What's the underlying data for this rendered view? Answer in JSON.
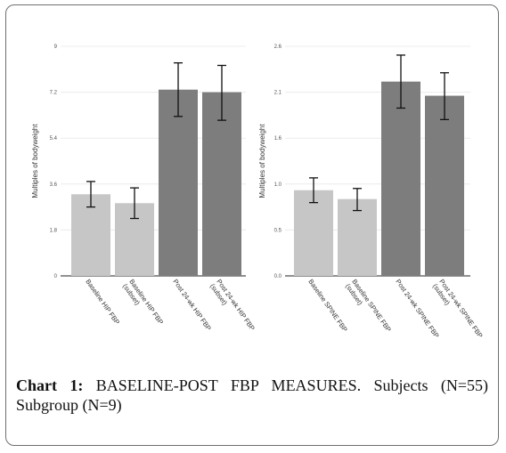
{
  "chart_data": [
    {
      "type": "bar",
      "title": "",
      "xlabel": "",
      "ylabel": "Multiples of bodyweight",
      "ylim": [
        0,
        9
      ],
      "yticks": [
        "0",
        "1.8",
        "3.6",
        "5.4",
        "7.2",
        "9"
      ],
      "categories": [
        "Baseline HIP FBP",
        "Baseline HIP FBP (subset)",
        "Post 24-wk HIP FBP",
        "Post 24-wk HIP FBP (subset)"
      ],
      "values": [
        3.2,
        2.85,
        7.3,
        7.2
      ],
      "error_low": [
        2.7,
        2.25,
        6.25,
        6.1
      ],
      "error_high": [
        3.7,
        3.45,
        8.35,
        8.25
      ],
      "bar_colors": [
        "#c6c6c6",
        "#c6c6c6",
        "#7d7d7d",
        "#7d7d7d"
      ],
      "grid": true
    },
    {
      "type": "bar",
      "title": "",
      "xlabel": "",
      "ylabel": "Multiples of bodyweight",
      "ylim": [
        0,
        2.6
      ],
      "yticks": [
        "0.0",
        "0.5",
        "1.0",
        "1.6",
        "2.1",
        "2.6"
      ],
      "categories": [
        "Baseline SPINE FBP",
        "Baseline SPINE FBP (subset)",
        "Post 24-wk SPINE FBP",
        "Post 24-wk SPINE FBP (subset)"
      ],
      "values": [
        0.97,
        0.87,
        2.2,
        2.04
      ],
      "error_low": [
        0.83,
        0.74,
        1.9,
        1.77
      ],
      "error_high": [
        1.11,
        0.99,
        2.5,
        2.3
      ],
      "bar_colors": [
        "#c6c6c6",
        "#c6c6c6",
        "#7d7d7d",
        "#7d7d7d"
      ],
      "grid": true
    }
  ],
  "caption": {
    "label": "Chart 1:",
    "text": " BASELINE-POST FBP MEASURES. Subjects (N=55) Subgroup (N=9)"
  }
}
